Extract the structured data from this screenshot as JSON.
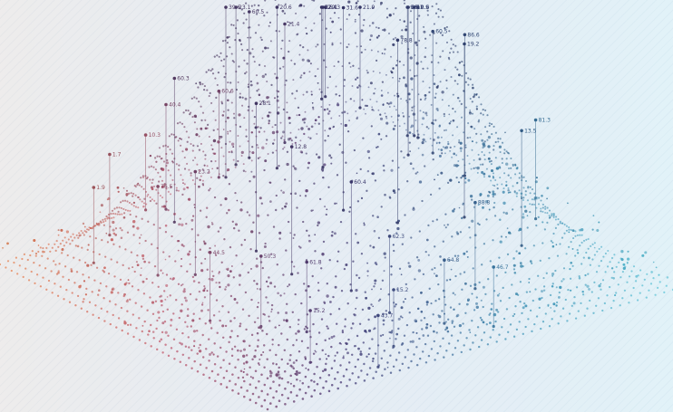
{
  "colors": {
    "background": "#eef6fb",
    "orange": "#e8763a",
    "rose": "#c25a6e",
    "purple": "#4b3b75",
    "navy": "#2b2f5c",
    "teal": "#3c8fb4",
    "cyan": "#4fc3d6"
  },
  "labels": [
    {
      "text": "60.5"
    },
    {
      "text": "2.6"
    },
    {
      "text": "9.5"
    },
    {
      "text": "86.6"
    },
    {
      "text": "81.3"
    },
    {
      "text": "21.4"
    },
    {
      "text": "60.5"
    },
    {
      "text": "23.1"
    },
    {
      "text": "10.3"
    },
    {
      "text": "1.7"
    },
    {
      "text": "1.9"
    },
    {
      "text": "60.3"
    },
    {
      "text": "22.4"
    },
    {
      "text": "21.9"
    },
    {
      "text": "10.9"
    },
    {
      "text": "68.1"
    },
    {
      "text": "20.6"
    },
    {
      "text": "16.1"
    },
    {
      "text": "31.6"
    },
    {
      "text": "78.8"
    },
    {
      "text": "19.2"
    },
    {
      "text": "13.5"
    },
    {
      "text": "88.8"
    },
    {
      "text": "64.8"
    },
    {
      "text": "39.6"
    },
    {
      "text": "28.1"
    },
    {
      "text": "12.8"
    },
    {
      "text": "60.4"
    },
    {
      "text": "62.3"
    },
    {
      "text": "15.2"
    },
    {
      "text": "46.7"
    },
    {
      "text": "60.6"
    },
    {
      "text": "40.4"
    },
    {
      "text": "20.3"
    },
    {
      "text": "76.5"
    },
    {
      "text": "23.2"
    },
    {
      "text": "44.5"
    },
    {
      "text": "50.3"
    },
    {
      "text": "61.8"
    },
    {
      "text": "15.2"
    },
    {
      "text": "43.7"
    }
  ]
}
